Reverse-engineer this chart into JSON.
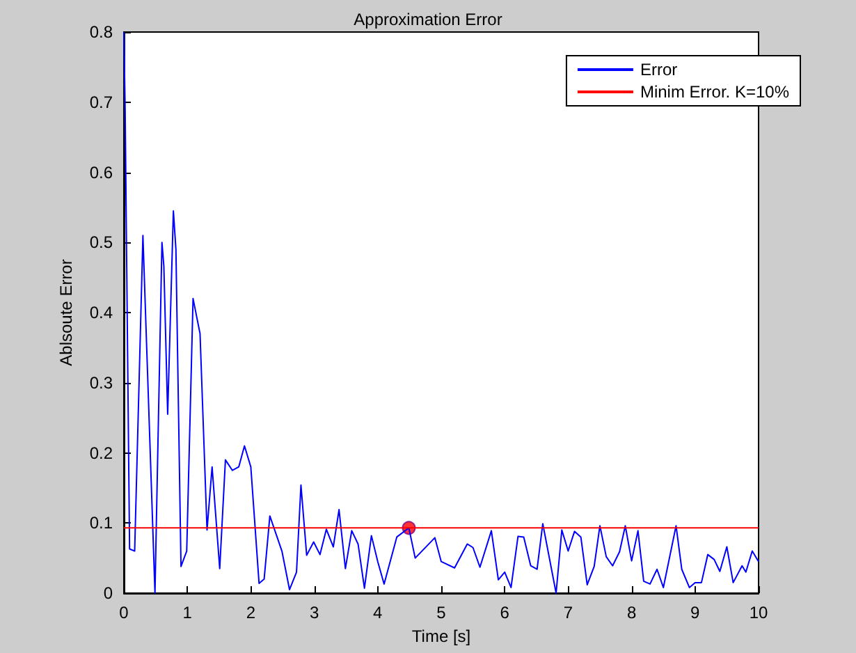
{
  "chart_data": {
    "type": "line",
    "title": "Approximation Error",
    "xlabel": "Time [s]",
    "ylabel": "Ablsoute Error",
    "xlim": [
      0,
      10
    ],
    "xticks": [
      0,
      1,
      2,
      3,
      4,
      5,
      6,
      7,
      8,
      9,
      10
    ],
    "ylim": [
      0,
      0.8
    ],
    "yticks": [
      0,
      0.1,
      0.2,
      0.3,
      0.4,
      0.5,
      0.6,
      0.7,
      0.8
    ],
    "grid": false,
    "legend": "top right",
    "marker": "none",
    "line_style": "solid",
    "series": [
      {
        "name": "Error",
        "color": "#0000ff",
        "x": [
          0,
          0.02,
          0.08,
          0.09,
          0.17,
          0.3,
          0.49,
          0.6,
          0.63,
          0.69,
          0.78,
          0.82,
          0.9,
          0.99,
          1.09,
          1.2,
          1.31,
          1.39,
          1.51,
          1.6,
          1.71,
          1.81,
          1.9,
          2.0,
          2.13,
          2.21,
          2.3,
          2.49,
          2.61,
          2.72,
          2.79,
          2.88,
          2.99,
          3.09,
          3.19,
          3.3,
          3.39,
          3.49,
          3.59,
          3.69,
          3.79,
          3.9,
          4.0,
          4.1,
          4.3,
          4.49,
          4.59,
          4.9,
          5.0,
          5.21,
          5.41,
          5.5,
          5.61,
          5.79,
          5.9,
          6.0,
          6.1,
          6.21,
          6.3,
          6.41,
          6.51,
          6.6,
          6.81,
          6.9,
          7.0,
          7.1,
          7.2,
          7.3,
          7.41,
          7.5,
          7.6,
          7.7,
          7.81,
          7.9,
          8.0,
          8.1,
          8.19,
          8.29,
          8.4,
          8.5,
          8.7,
          8.79,
          8.91,
          9.0,
          9.1,
          9.2,
          9.3,
          9.39,
          9.5,
          9.6,
          9.74,
          9.8,
          9.9,
          10
        ],
        "values": [
          0.8,
          0.69,
          0.15,
          0.063,
          0.06,
          0.51,
          0,
          0.5,
          0.466,
          0.255,
          0.545,
          0.49,
          0.038,
          0.06,
          0.42,
          0.37,
          0.09,
          0.18,
          0.035,
          0.19,
          0.175,
          0.18,
          0.21,
          0.18,
          0.014,
          0.02,
          0.11,
          0.06,
          0.005,
          0.03,
          0.154,
          0.054,
          0.073,
          0.055,
          0.091,
          0.066,
          0.119,
          0.035,
          0.089,
          0.07,
          0.007,
          0.082,
          0.045,
          0.013,
          0.08,
          0.093,
          0.05,
          0.079,
          0.045,
          0.036,
          0.07,
          0.065,
          0.037,
          0.089,
          0.019,
          0.03,
          0.008,
          0.081,
          0.08,
          0.039,
          0.034,
          0.099,
          0,
          0.09,
          0.06,
          0.088,
          0.08,
          0.012,
          0.038,
          0.096,
          0.052,
          0.039,
          0.059,
          0.096,
          0.046,
          0.089,
          0.017,
          0.013,
          0.034,
          0.008,
          0.096,
          0.034,
          0.008,
          0.015,
          0.015,
          0.055,
          0.048,
          0.031,
          0.066,
          0.015,
          0.039,
          0.03,
          0.06,
          0.045
        ]
      },
      {
        "name": "Minim Error. K=10%",
        "color": "#ff0000",
        "x": [
          0,
          10
        ],
        "values": [
          0.093,
          0.093
        ]
      },
      {
        "type": "scatter",
        "marker": "circle",
        "color": "#ff0000",
        "x": [
          4.49
        ],
        "values": [
          0.093
        ]
      }
    ]
  }
}
